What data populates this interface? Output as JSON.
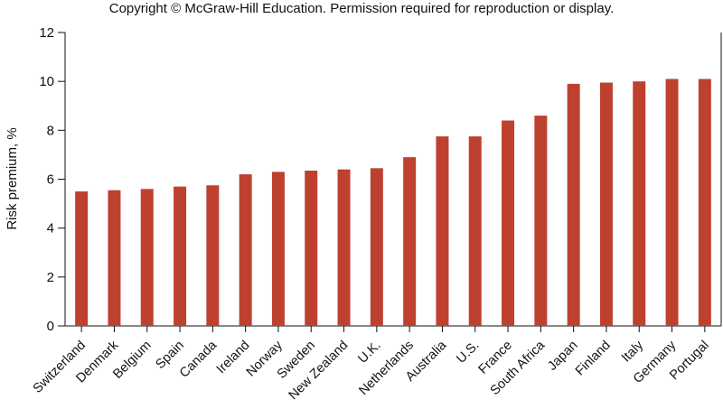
{
  "copyright": "Copyright © McGraw-Hill Education. Permission required for reproduction or display.",
  "chart_data": {
    "type": "bar",
    "title": "",
    "xlabel": "",
    "ylabel": "Risk premium, %",
    "ylim": [
      0,
      12
    ],
    "yticks": [
      0,
      2,
      4,
      6,
      8,
      10,
      12
    ],
    "grid": false,
    "bar_color": "#be4130",
    "categories": [
      "Switzerland",
      "Denmark",
      "Belgium",
      "Spain",
      "Canada",
      "Ireland",
      "Norway",
      "Sweden",
      "New Zealand",
      "U.K.",
      "Netherlands",
      "Australia",
      "U.S.",
      "France",
      "South Africa",
      "Japan",
      "Finland",
      "Italy",
      "Germany",
      "Portugal"
    ],
    "values": [
      5.5,
      5.55,
      5.6,
      5.7,
      5.75,
      6.2,
      6.3,
      6.35,
      6.4,
      6.45,
      6.9,
      7.75,
      7.75,
      8.4,
      8.6,
      9.9,
      9.95,
      10.0,
      10.1,
      10.1
    ]
  }
}
